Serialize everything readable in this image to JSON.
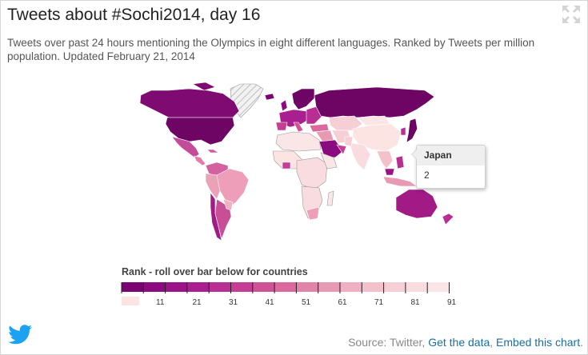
{
  "title": "Tweets about #Sochi2014, day 16",
  "subtitle": "Tweets over past 24 hours mentioning the Olympics in eight different languages. Ranked by Tweets per million population. Updated February 21, 2014",
  "tooltip": {
    "country": "Japan",
    "value": "2"
  },
  "legend": {
    "title": "Rank - roll over bar below for countries",
    "ticks": [
      "11",
      "21",
      "31",
      "41",
      "51",
      "61",
      "71",
      "81",
      "91"
    ],
    "colors": [
      "#7a0472",
      "#8b0a7f",
      "#9b1287",
      "#aa1f8f",
      "#b92e92",
      "#c43e93",
      "#cf5296",
      "#da6a9e",
      "#e283a9",
      "#e89ab5",
      "#eeb0c2",
      "#f2c1cc",
      "#f5cfd5",
      "#f8dcdf",
      "#fae5e7"
    ],
    "no_data_color": "#fbe4e2"
  },
  "icons": {
    "expand": "expand-icon",
    "twitter": "twitter-bird-icon"
  },
  "footer": {
    "source": "Source: Twitter,",
    "get_data": "Get the data",
    "comma": ",",
    "embed": "Embed this chart",
    "period": "."
  }
}
